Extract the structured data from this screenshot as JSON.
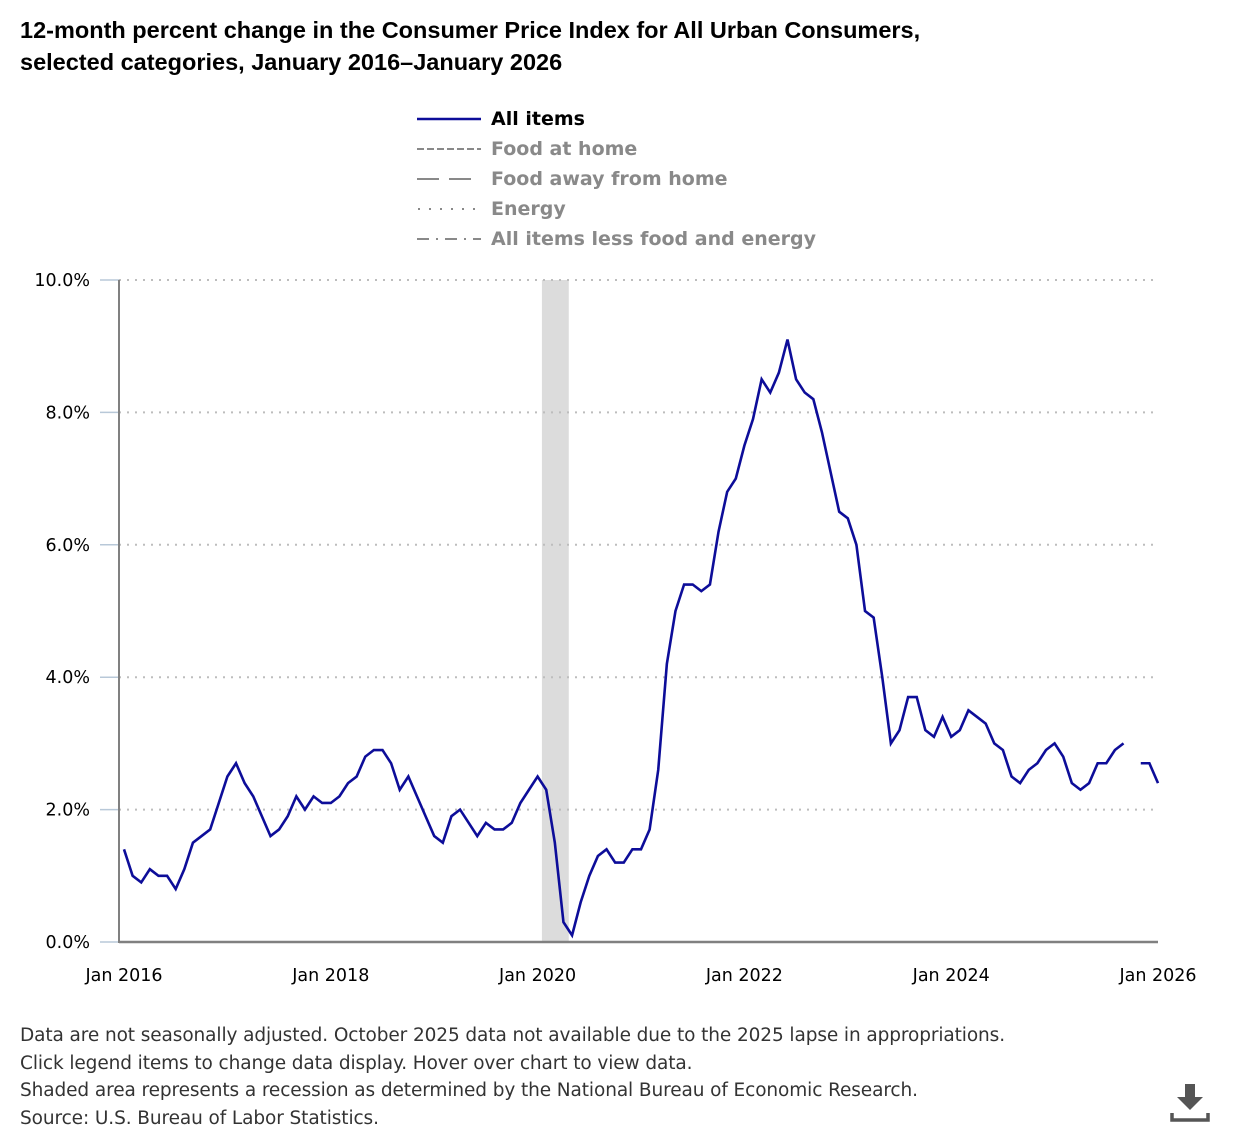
{
  "title_line1": "12-month percent change in the Consumer Price Index for All Urban Consumers,",
  "title_line2": "selected categories, January 2016–January 2026",
  "legend": [
    {
      "label": "All items",
      "style": "solid",
      "color": "#0d0d99",
      "active": true
    },
    {
      "label": "Food at home",
      "style": "short-dash",
      "color": "#898989",
      "active": false
    },
    {
      "label": "Food away from home",
      "style": "long-dash",
      "color": "#898989",
      "active": false
    },
    {
      "label": "Energy",
      "style": "dotted",
      "color": "#898989",
      "active": false
    },
    {
      "label": "All items less food and energy",
      "style": "dash-dot",
      "color": "#898989",
      "active": false
    }
  ],
  "footer": {
    "line1": "Data are not seasonally adjusted. October 2025 data not available due to the 2025 lapse in appropriations.",
    "line2": "Click legend items to change data display. Hover over chart to view data.",
    "line3": "Shaded area represents a recession as determined by the National Bureau of Economic Research.",
    "line4": "Source: U.S. Bureau of Labor Statistics."
  },
  "download_icon": "download-icon",
  "colors": {
    "series": "#0d0d99",
    "grid": "#bdbdbd",
    "axis": "#808080",
    "recession": "#dcdcdc",
    "inactive_legend": "#898989"
  },
  "chart_data": {
    "type": "line",
    "title": "12-month percent change in the Consumer Price Index for All Urban Consumers, selected categories, January 2016–January 2026",
    "xlabel": "",
    "ylabel": "",
    "x_start": "2016-01",
    "x_end": "2026-01",
    "x_ticks": [
      "Jan 2016",
      "Jan 2018",
      "Jan 2020",
      "Jan 2022",
      "Jan 2024",
      "Jan 2026"
    ],
    "x_tick_months": [
      0,
      24,
      48,
      72,
      96,
      120
    ],
    "ylim": [
      0,
      10
    ],
    "y_ticks": [
      0,
      2,
      4,
      6,
      8,
      10
    ],
    "y_tick_labels": [
      "0.0%",
      "2.0%",
      "4.0%",
      "6.0%",
      "8.0%",
      "10.0%"
    ],
    "grid": "horizontal-dotted",
    "legend_position": "top-center",
    "recession": {
      "start": "2020-02",
      "end": "2020-04",
      "start_month": 49,
      "end_month": 51
    },
    "series": [
      {
        "name": "All items",
        "visible": true,
        "values": [
          1.4,
          1.0,
          0.9,
          1.1,
          1.0,
          1.0,
          0.8,
          1.1,
          1.5,
          1.6,
          1.7,
          2.1,
          2.5,
          2.7,
          2.4,
          2.2,
          1.9,
          1.6,
          1.7,
          1.9,
          2.2,
          2.0,
          2.2,
          2.1,
          2.1,
          2.2,
          2.4,
          2.5,
          2.8,
          2.9,
          2.9,
          2.7,
          2.3,
          2.5,
          2.2,
          1.9,
          1.6,
          1.5,
          1.9,
          2.0,
          1.8,
          1.6,
          1.8,
          1.7,
          1.7,
          1.8,
          2.1,
          2.3,
          2.5,
          2.3,
          1.5,
          0.3,
          0.1,
          0.6,
          1.0,
          1.3,
          1.4,
          1.2,
          1.2,
          1.4,
          1.4,
          1.7,
          2.6,
          4.2,
          5.0,
          5.4,
          5.4,
          5.3,
          5.4,
          6.2,
          6.8,
          7.0,
          7.5,
          7.9,
          8.5,
          8.3,
          8.6,
          9.1,
          8.5,
          8.3,
          8.2,
          7.7,
          7.1,
          6.5,
          6.4,
          6.0,
          5.0,
          4.9,
          4.0,
          3.0,
          3.2,
          3.7,
          3.7,
          3.2,
          3.1,
          3.4,
          3.1,
          3.2,
          3.5,
          3.4,
          3.3,
          3.0,
          2.9,
          2.5,
          2.4,
          2.6,
          2.7,
          2.9,
          3.0,
          2.8,
          2.4,
          2.3,
          2.4,
          2.7,
          2.7,
          2.9,
          3.0,
          null,
          2.7,
          2.7,
          2.4
        ]
      },
      {
        "name": "Food at home",
        "visible": false,
        "values": []
      },
      {
        "name": "Food away from home",
        "visible": false,
        "values": []
      },
      {
        "name": "Energy",
        "visible": false,
        "values": []
      },
      {
        "name": "All items less food and energy",
        "visible": false,
        "values": []
      }
    ]
  }
}
